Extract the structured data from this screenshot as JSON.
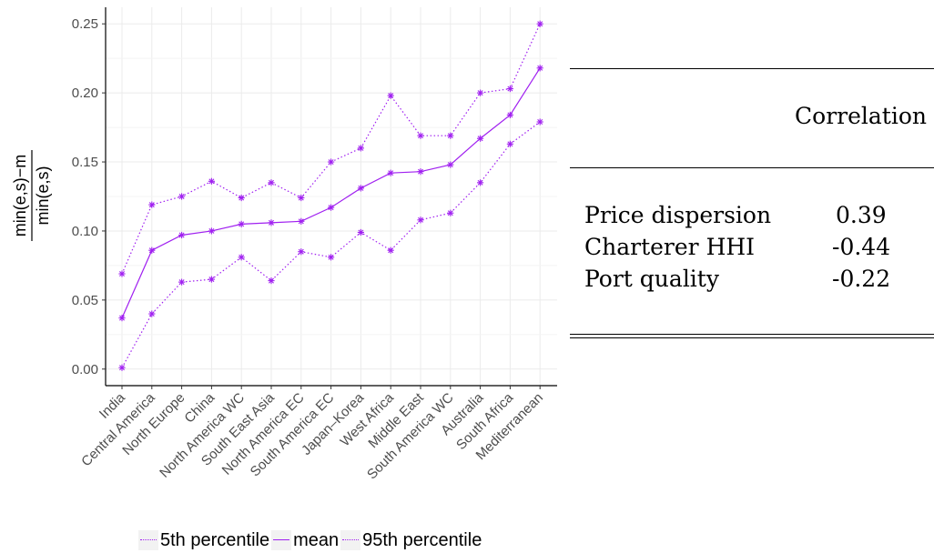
{
  "chart_data": {
    "type": "line",
    "categories": [
      "India",
      "Central America",
      "North Europe",
      "China",
      "North America WC",
      "South East Asia",
      "North America EC",
      "South America EC",
      "Japan–Korea",
      "West Africa",
      "Middle East",
      "South America WC",
      "Australia",
      "South Africa",
      "Mediterranean"
    ],
    "series": [
      {
        "name": "5th percentile",
        "style": "dotted",
        "values": [
          0.001,
          0.04,
          0.063,
          0.065,
          0.081,
          0.064,
          0.085,
          0.081,
          0.099,
          0.086,
          0.108,
          0.113,
          0.135,
          0.163,
          0.179
        ]
      },
      {
        "name": "mean",
        "style": "solid",
        "values": [
          0.037,
          0.086,
          0.097,
          0.1,
          0.105,
          0.106,
          0.107,
          0.117,
          0.131,
          0.142,
          0.143,
          0.148,
          0.167,
          0.184,
          0.218
        ]
      },
      {
        "name": "95th percentile",
        "style": "dotted",
        "values": [
          0.069,
          0.119,
          0.125,
          0.136,
          0.124,
          0.135,
          0.124,
          0.15,
          0.16,
          0.198,
          0.169,
          0.169,
          0.2,
          0.203,
          0.25
        ]
      }
    ],
    "ylabel_numerator": "min(e,s)−m",
    "ylabel_denominator": "min(e,s)",
    "yticks": [
      "0.00",
      "0.05",
      "0.10",
      "0.15",
      "0.20",
      "0.25"
    ],
    "ylim": [
      -0.012,
      0.262
    ],
    "color": "#a020f0",
    "marker": "asterisk",
    "grid": true,
    "legend_position": "bottom"
  },
  "table": {
    "header": "Correlation",
    "rows": [
      {
        "label": "Price dispersion",
        "value": "0.39"
      },
      {
        "label": "Charterer HHI",
        "value": "-0.44"
      },
      {
        "label": "Port quality",
        "value": "-0.22"
      }
    ]
  }
}
